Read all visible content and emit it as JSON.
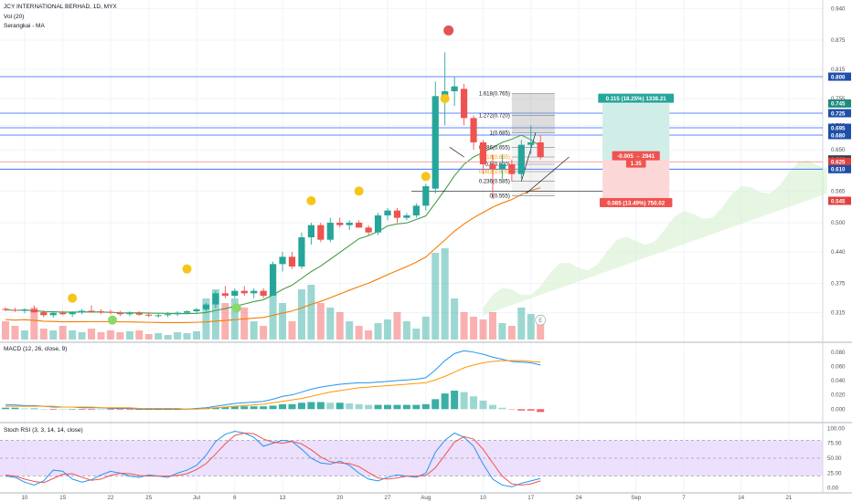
{
  "chart_data": {
    "type": "candlestick",
    "title": "JCY INTERNATIONAL BERHAD, 1D, MYX",
    "indicators": [
      "Vol (20)",
      "Serangkai - MA"
    ],
    "ylim": [
      0.26,
      0.95
    ],
    "y_ticks": [
      "0.940",
      "0.875",
      "0.815",
      "0.755",
      "0.700",
      "0.650",
      "0.565",
      "0.500",
      "0.440",
      "0.375",
      "0.315"
    ],
    "x_ticks": [
      {
        "i": 2,
        "label": "10"
      },
      {
        "i": 6,
        "label": "15"
      },
      {
        "i": 11,
        "label": "22"
      },
      {
        "i": 15,
        "label": "25"
      },
      {
        "i": 20,
        "label": "Jul"
      },
      {
        "i": 24,
        "label": "6"
      },
      {
        "i": 29,
        "label": "13"
      },
      {
        "i": 35,
        "label": "20"
      },
      {
        "i": 40,
        "label": "27"
      },
      {
        "i": 44,
        "label": "Aug"
      },
      {
        "i": 50,
        "label": "10"
      },
      {
        "i": 55,
        "label": "17"
      },
      {
        "i": 60,
        "label": "24"
      },
      {
        "i": 66,
        "label": "Sep"
      },
      {
        "i": 71,
        "label": "7"
      },
      {
        "i": 77,
        "label": "14"
      },
      {
        "i": 82,
        "label": "21"
      }
    ],
    "candles": [
      {
        "o": 0.323,
        "h": 0.326,
        "l": 0.318,
        "c": 0.321
      },
      {
        "o": 0.321,
        "h": 0.325,
        "l": 0.317,
        "c": 0.319
      },
      {
        "o": 0.319,
        "h": 0.324,
        "l": 0.314,
        "c": 0.322
      },
      {
        "o": 0.322,
        "h": 0.33,
        "l": 0.315,
        "c": 0.316
      },
      {
        "o": 0.316,
        "h": 0.32,
        "l": 0.306,
        "c": 0.31
      },
      {
        "o": 0.31,
        "h": 0.318,
        "l": 0.305,
        "c": 0.315
      },
      {
        "o": 0.315,
        "h": 0.319,
        "l": 0.31,
        "c": 0.312
      },
      {
        "o": 0.312,
        "h": 0.318,
        "l": 0.306,
        "c": 0.316
      },
      {
        "o": 0.316,
        "h": 0.323,
        "l": 0.312,
        "c": 0.319
      },
      {
        "o": 0.319,
        "h": 0.33,
        "l": 0.315,
        "c": 0.318
      },
      {
        "o": 0.318,
        "h": 0.322,
        "l": 0.312,
        "c": 0.317
      },
      {
        "o": 0.317,
        "h": 0.321,
        "l": 0.312,
        "c": 0.315
      },
      {
        "o": 0.315,
        "h": 0.319,
        "l": 0.308,
        "c": 0.312
      },
      {
        "o": 0.312,
        "h": 0.318,
        "l": 0.308,
        "c": 0.314
      },
      {
        "o": 0.314,
        "h": 0.318,
        "l": 0.309,
        "c": 0.311
      },
      {
        "o": 0.311,
        "h": 0.316,
        "l": 0.306,
        "c": 0.309
      },
      {
        "o": 0.309,
        "h": 0.313,
        "l": 0.305,
        "c": 0.31
      },
      {
        "o": 0.31,
        "h": 0.316,
        "l": 0.306,
        "c": 0.312
      },
      {
        "o": 0.312,
        "h": 0.318,
        "l": 0.308,
        "c": 0.315
      },
      {
        "o": 0.315,
        "h": 0.32,
        "l": 0.312,
        "c": 0.318
      },
      {
        "o": 0.318,
        "h": 0.325,
        "l": 0.314,
        "c": 0.322
      },
      {
        "o": 0.322,
        "h": 0.335,
        "l": 0.318,
        "c": 0.332
      },
      {
        "o": 0.332,
        "h": 0.36,
        "l": 0.325,
        "c": 0.355
      },
      {
        "o": 0.355,
        "h": 0.37,
        "l": 0.345,
        "c": 0.35
      },
      {
        "o": 0.35,
        "h": 0.365,
        "l": 0.345,
        "c": 0.36
      },
      {
        "o": 0.36,
        "h": 0.37,
        "l": 0.35,
        "c": 0.355
      },
      {
        "o": 0.355,
        "h": 0.365,
        "l": 0.345,
        "c": 0.36
      },
      {
        "o": 0.36,
        "h": 0.365,
        "l": 0.345,
        "c": 0.35
      },
      {
        "o": 0.35,
        "h": 0.42,
        "l": 0.35,
        "c": 0.415
      },
      {
        "o": 0.415,
        "h": 0.44,
        "l": 0.4,
        "c": 0.43
      },
      {
        "o": 0.43,
        "h": 0.44,
        "l": 0.405,
        "c": 0.41
      },
      {
        "o": 0.41,
        "h": 0.48,
        "l": 0.405,
        "c": 0.47
      },
      {
        "o": 0.47,
        "h": 0.5,
        "l": 0.455,
        "c": 0.495
      },
      {
        "o": 0.495,
        "h": 0.5,
        "l": 0.46,
        "c": 0.465
      },
      {
        "o": 0.465,
        "h": 0.51,
        "l": 0.46,
        "c": 0.5
      },
      {
        "o": 0.5,
        "h": 0.51,
        "l": 0.49,
        "c": 0.495
      },
      {
        "o": 0.495,
        "h": 0.505,
        "l": 0.485,
        "c": 0.5
      },
      {
        "o": 0.5,
        "h": 0.505,
        "l": 0.49,
        "c": 0.49
      },
      {
        "o": 0.49,
        "h": 0.495,
        "l": 0.475,
        "c": 0.48
      },
      {
        "o": 0.48,
        "h": 0.52,
        "l": 0.475,
        "c": 0.515
      },
      {
        "o": 0.515,
        "h": 0.53,
        "l": 0.505,
        "c": 0.525
      },
      {
        "o": 0.525,
        "h": 0.53,
        "l": 0.5,
        "c": 0.51
      },
      {
        "o": 0.51,
        "h": 0.52,
        "l": 0.505,
        "c": 0.515
      },
      {
        "o": 0.515,
        "h": 0.54,
        "l": 0.51,
        "c": 0.535
      },
      {
        "o": 0.535,
        "h": 0.58,
        "l": 0.525,
        "c": 0.575
      },
      {
        "o": 0.57,
        "h": 0.79,
        "l": 0.56,
        "c": 0.76
      },
      {
        "o": 0.76,
        "h": 0.85,
        "l": 0.7,
        "c": 0.77
      },
      {
        "o": 0.77,
        "h": 0.8,
        "l": 0.74,
        "c": 0.78
      },
      {
        "o": 0.775,
        "h": 0.785,
        "l": 0.7,
        "c": 0.715
      },
      {
        "o": 0.715,
        "h": 0.72,
        "l": 0.65,
        "c": 0.665
      },
      {
        "o": 0.665,
        "h": 0.67,
        "l": 0.6,
        "c": 0.62
      },
      {
        "o": 0.62,
        "h": 0.64,
        "l": 0.55,
        "c": 0.61
      },
      {
        "o": 0.61,
        "h": 0.64,
        "l": 0.59,
        "c": 0.62
      },
      {
        "o": 0.62,
        "h": 0.63,
        "l": 0.585,
        "c": 0.6
      },
      {
        "o": 0.6,
        "h": 0.67,
        "l": 0.59,
        "c": 0.66
      },
      {
        "o": 0.66,
        "h": 0.7,
        "l": 0.64,
        "c": 0.665
      },
      {
        "o": 0.665,
        "h": 0.68,
        "l": 0.63,
        "c": 0.635
      }
    ],
    "volume": [
      0.2,
      0.15,
      0.1,
      0.35,
      0.12,
      0.1,
      0.15,
      0.1,
      0.08,
      0.12,
      0.08,
      0.1,
      0.08,
      0.09,
      0.1,
      0.06,
      0.07,
      0.05,
      0.08,
      0.07,
      0.09,
      0.45,
      0.55,
      0.4,
      0.45,
      0.35,
      0.2,
      0.15,
      0.5,
      0.4,
      0.2,
      0.55,
      0.6,
      0.4,
      0.35,
      0.3,
      0.2,
      0.15,
      0.1,
      0.18,
      0.22,
      0.3,
      0.2,
      0.12,
      0.25,
      0.95,
      1.0,
      0.45,
      0.3,
      0.25,
      0.22,
      0.3,
      0.18,
      0.15,
      0.35,
      0.28,
      0.2
    ],
    "macd": {
      "label": "MACD (12, 26, close, 9)",
      "ylim": [
        -0.015,
        0.09
      ],
      "y_ticks": [
        "0.080",
        "0.060",
        "0.040",
        "0.020",
        "0.000"
      ],
      "macd": [
        0.006,
        0.006,
        0.005,
        0.005,
        0.004,
        0.003,
        0.003,
        0.003,
        0.002,
        0.002,
        0.002,
        0.001,
        0.001,
        0.001,
        0.0,
        0.0,
        0.0,
        0.0,
        0.0,
        0.0,
        0.001,
        0.002,
        0.004,
        0.006,
        0.008,
        0.009,
        0.01,
        0.011,
        0.014,
        0.018,
        0.02,
        0.024,
        0.028,
        0.031,
        0.033,
        0.035,
        0.036,
        0.037,
        0.037,
        0.038,
        0.039,
        0.04,
        0.041,
        0.042,
        0.044,
        0.055,
        0.068,
        0.078,
        0.082,
        0.08,
        0.077,
        0.073,
        0.07,
        0.067,
        0.066,
        0.065,
        0.062
      ],
      "signal": [
        0.004,
        0.004,
        0.004,
        0.004,
        0.004,
        0.004,
        0.003,
        0.003,
        0.003,
        0.003,
        0.002,
        0.002,
        0.002,
        0.002,
        0.001,
        0.001,
        0.001,
        0.001,
        0.001,
        0.0,
        0.0,
        0.001,
        0.002,
        0.003,
        0.004,
        0.005,
        0.006,
        0.007,
        0.009,
        0.011,
        0.013,
        0.015,
        0.018,
        0.021,
        0.024,
        0.026,
        0.028,
        0.03,
        0.031,
        0.032,
        0.033,
        0.034,
        0.035,
        0.036,
        0.037,
        0.041,
        0.046,
        0.052,
        0.058,
        0.062,
        0.065,
        0.067,
        0.068,
        0.068,
        0.068,
        0.067,
        0.066
      ],
      "hist": [
        0.002,
        0.002,
        0.001,
        0.001,
        0.0,
        -0.001,
        0.0,
        0.0,
        -0.001,
        -0.001,
        0.0,
        -0.001,
        -0.001,
        -0.001,
        -0.001,
        -0.001,
        -0.001,
        -0.001,
        -0.001,
        0.0,
        0.001,
        0.001,
        0.002,
        0.003,
        0.004,
        0.004,
        0.004,
        0.004,
        0.005,
        0.007,
        0.007,
        0.009,
        0.01,
        0.01,
        0.009,
        0.009,
        0.008,
        0.007,
        0.006,
        0.006,
        0.006,
        0.006,
        0.006,
        0.006,
        0.007,
        0.014,
        0.022,
        0.026,
        0.024,
        0.018,
        0.012,
        0.006,
        0.002,
        -0.001,
        -0.002,
        -0.002,
        -0.004
      ]
    },
    "stoch_rsi": {
      "label": "Stoch RSI (3, 3, 14, 14, close)",
      "ylim": [
        -5,
        105
      ],
      "y_ticks": [
        "100.00",
        "75.00",
        "50.00",
        "25.00",
        "0.00"
      ],
      "k": [
        20,
        18,
        10,
        5,
        12,
        30,
        28,
        15,
        10,
        14,
        22,
        28,
        25,
        20,
        18,
        22,
        20,
        18,
        25,
        30,
        38,
        55,
        78,
        90,
        95,
        92,
        85,
        70,
        75,
        80,
        78,
        65,
        50,
        42,
        40,
        45,
        38,
        25,
        15,
        12,
        18,
        22,
        20,
        18,
        25,
        60,
        80,
        92,
        85,
        70,
        40,
        15,
        5,
        2,
        8,
        12,
        16
      ],
      "d": [
        22,
        20,
        15,
        11,
        9,
        16,
        23,
        24,
        18,
        13,
        15,
        21,
        25,
        24,
        21,
        20,
        20,
        20,
        21,
        24,
        31,
        41,
        57,
        74,
        88,
        92,
        91,
        82,
        77,
        75,
        78,
        74,
        64,
        52,
        44,
        42,
        41,
        36,
        26,
        17,
        15,
        17,
        20,
        20,
        21,
        34,
        55,
        77,
        86,
        82,
        65,
        42,
        20,
        7,
        5,
        7,
        12
      ]
    },
    "annotations": {
      "fib": [
        {
          "level": "1.618",
          "price": 0.765
        },
        {
          "level": "1.272",
          "price": 0.72
        },
        {
          "level": "1",
          "price": 0.685
        },
        {
          "level": "0.786",
          "price": 0.655
        },
        {
          "level": "0.618",
          "price": 0.635
        },
        {
          "level": "0.5",
          "price": 0.62
        },
        {
          "level": "0.382",
          "price": 0.605
        },
        {
          "level": "0.236",
          "price": 0.585
        },
        {
          "level": "0",
          "price": 0.555
        }
      ],
      "fib_labels": [
        "1.618(0.765)",
        "1.272(0.720)",
        "1(0.685)",
        "0.786(0.655)",
        "0.618(0.635)",
        "0.5(0.620)",
        "0.382(0.605)",
        "0.236(0.585)",
        "0(0.555)"
      ],
      "position_target_label": "0.115 (18.25%) 1338.21",
      "position_mid_label_1": "-0.005 → 2941",
      "position_mid_label_2": "1.35",
      "position_stop_label": "0.085 (13.49%) 750.02",
      "price_tags": [
        {
          "price": 0.8,
          "label": "0.800",
          "color": "#1e4fa8"
        },
        {
          "price": 0.745,
          "label": "0.745",
          "color": "#1e8a7a"
        },
        {
          "price": 0.725,
          "label": "0.725",
          "color": "#1e4fa8"
        },
        {
          "price": 0.695,
          "label": "0.695",
          "color": "#1e4fa8"
        },
        {
          "price": 0.68,
          "label": "0.680",
          "color": "#1e4fa8"
        },
        {
          "price": 0.63,
          "label": "0.630",
          "color": "#3a3d4a"
        },
        {
          "price": 0.625,
          "label": "0.625",
          "color": "#e04040"
        },
        {
          "price": 0.61,
          "label": "0.610",
          "color": "#1e4fa8"
        },
        {
          "price": 0.545,
          "label": "0.545",
          "color": "#e04040"
        }
      ],
      "h_lines": [
        0.8,
        0.725,
        0.695,
        0.68,
        0.625,
        0.61
      ],
      "dots_yellow": [
        {
          "i": 7,
          "p": 0.345
        },
        {
          "i": 19,
          "p": 0.405
        },
        {
          "i": 32,
          "p": 0.545
        },
        {
          "i": 37,
          "p": 0.565
        },
        {
          "i": 44,
          "p": 0.595
        },
        {
          "i": 46,
          "p": 0.755
        }
      ],
      "dots_red": [
        {
          "i": 46,
          "p": 0.895
        }
      ],
      "dots_green": [
        {
          "i": 11,
          "p": 0.3
        },
        {
          "i": 24,
          "p": 0.325
        }
      ],
      "marker_e": "E"
    },
    "colors": {
      "up": "#26a69a",
      "down": "#ef5350",
      "ma_green": "#43a047",
      "ma_orange": "#f57c00",
      "macd": "#2196f3",
      "signal": "#ff9800",
      "stoch_bg": "#e5d5fb",
      "k": "#2196f3",
      "d": "#ef5350"
    }
  }
}
